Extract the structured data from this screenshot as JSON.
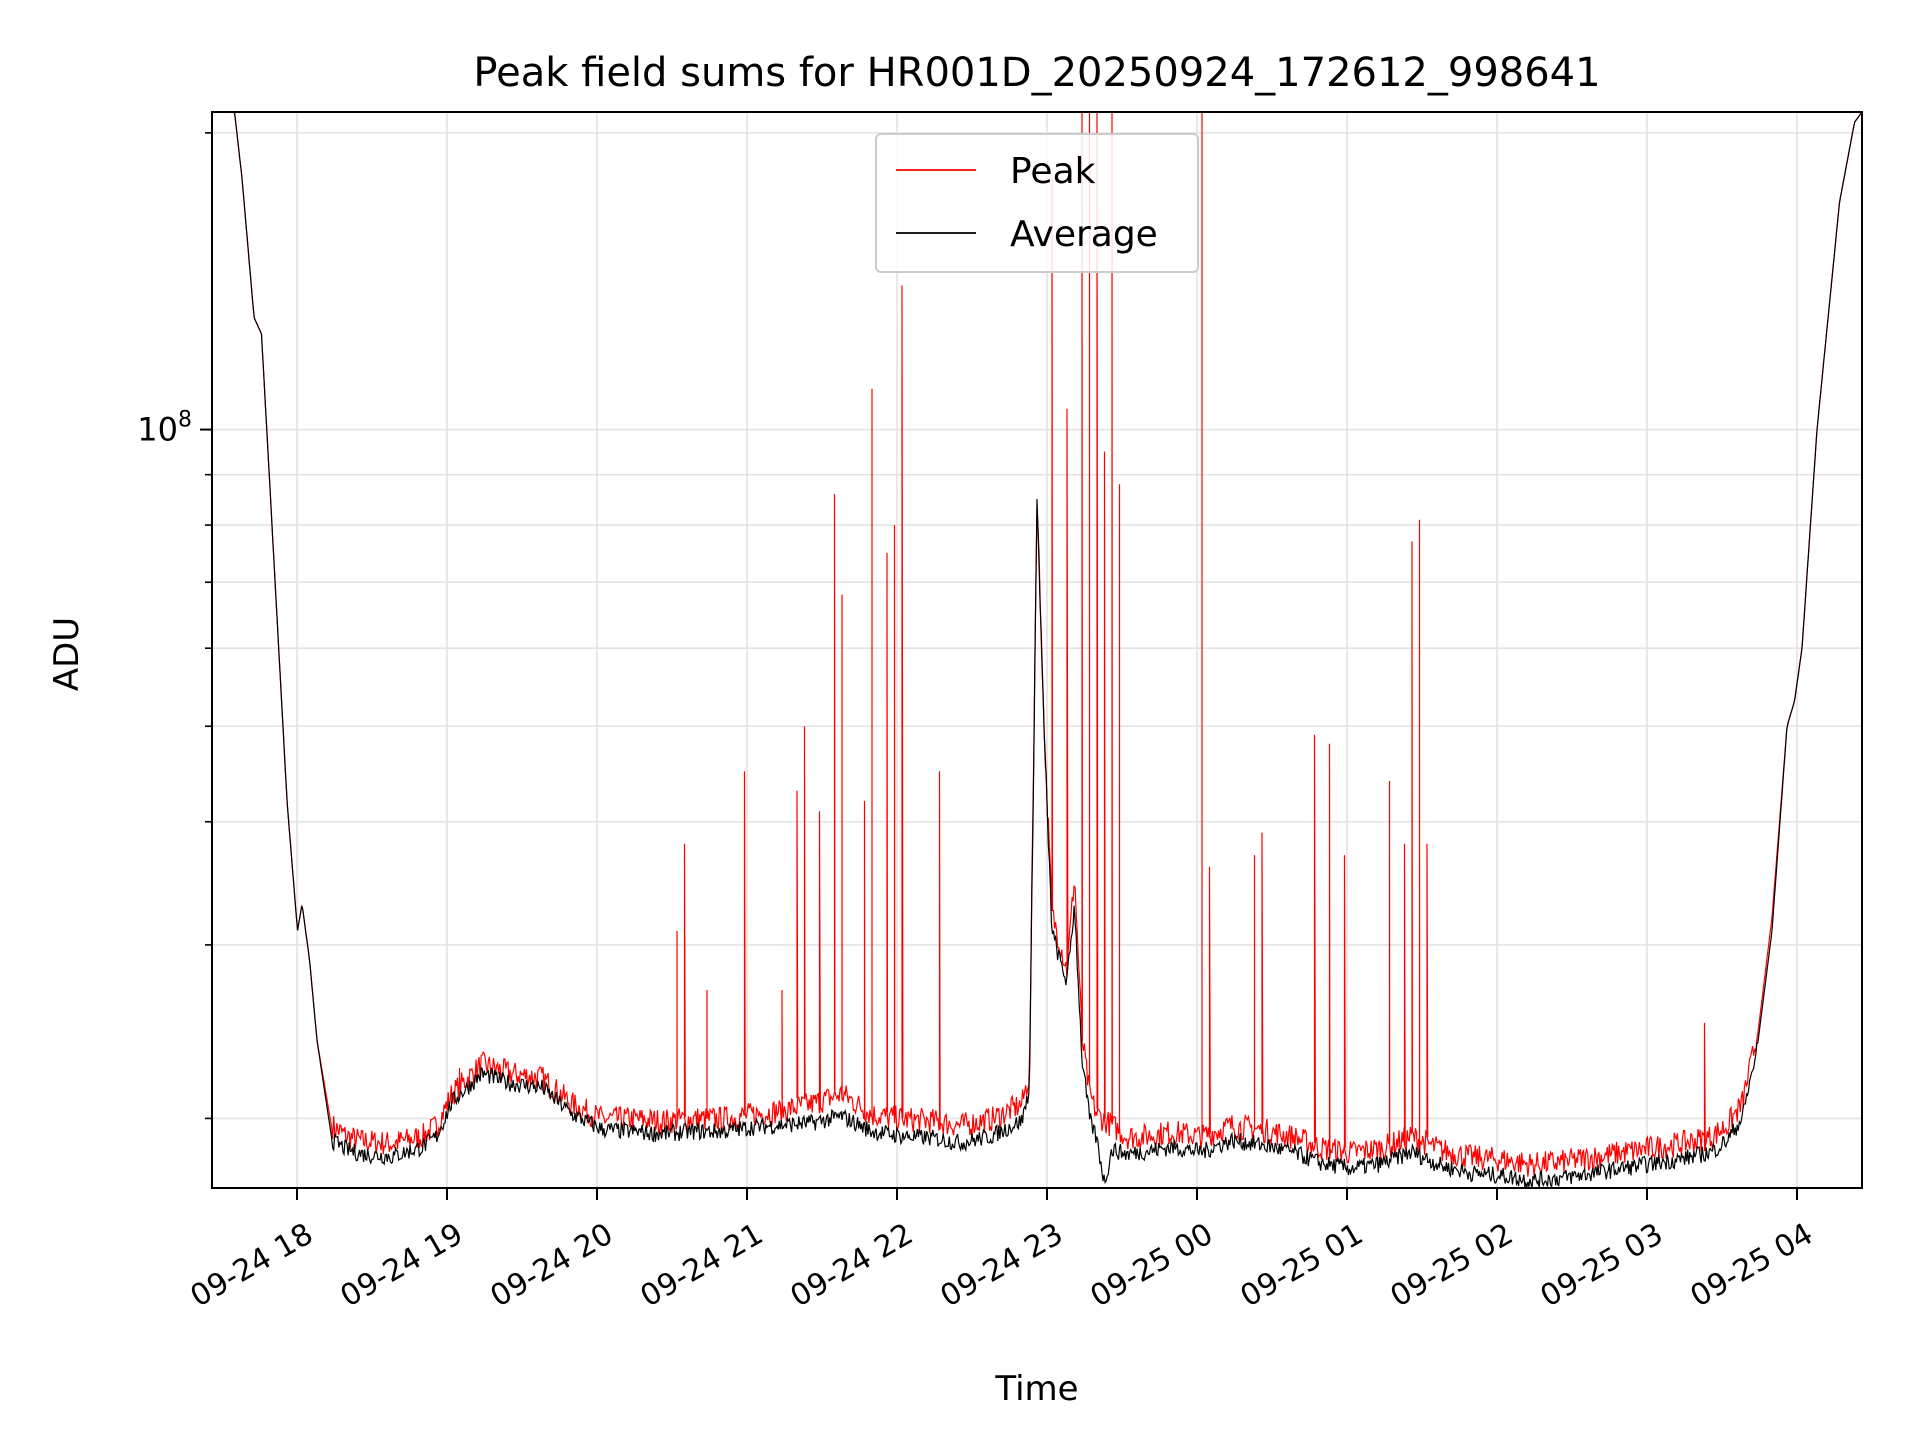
{
  "chart_data": {
    "type": "line",
    "title": "Peak field sums for HR001D_20250924_172612_998641",
    "xlabel": "Time",
    "ylabel": "ADU",
    "y_scale": "log",
    "x_range": [
      "09-24 17:26",
      "09-25 04:26"
    ],
    "ylim": [
      17000000,
      210000000
    ],
    "x_tick_labels": [
      "09-24 18",
      "09-24 19",
      "09-24 20",
      "09-24 21",
      "09-24 22",
      "09-24 23",
      "09-25 00",
      "09-25 01",
      "09-25 02",
      "09-25 03",
      "09-25 04"
    ],
    "x_tick_hours": [
      0.5667,
      1.5667,
      2.5667,
      3.5667,
      4.5667,
      5.5667,
      6.5667,
      7.5667,
      8.5667,
      9.5667,
      10.5667
    ],
    "y_tick_labels": [
      {
        "base": "10",
        "exp": "8",
        "value": 100000000
      }
    ],
    "y_minor_values": [
      20000000,
      30000000,
      40000000,
      50000000,
      60000000,
      70000000,
      80000000,
      90000000,
      200000000
    ],
    "grid": true,
    "legend_position": "top-center",
    "series": [
      {
        "name": "Peak",
        "color": "#ff0000",
        "values_unit": "ADU",
        "x_unit": "hours since 09-24 17:26",
        "baseline": [
          [
            0,
            210000000
          ],
          [
            0.15,
            210000000
          ],
          [
            0.2,
            180000000
          ],
          [
            0.28,
            130000000
          ],
          [
            0.33,
            125000000
          ],
          [
            0.4,
            80000000
          ],
          [
            0.5,
            42000000
          ],
          [
            0.57,
            31000000
          ],
          [
            0.6,
            33000000
          ],
          [
            0.65,
            29000000
          ],
          [
            0.7,
            24000000
          ],
          [
            0.8,
            19500000
          ],
          [
            0.9,
            19000000
          ],
          [
            1.0,
            18800000
          ],
          [
            1.2,
            18700000
          ],
          [
            1.4,
            19000000
          ],
          [
            1.5,
            19500000
          ],
          [
            1.6,
            21000000
          ],
          [
            1.8,
            22500000
          ],
          [
            2.0,
            22000000
          ],
          [
            2.2,
            21800000
          ],
          [
            2.4,
            20500000
          ],
          [
            2.6,
            19800000
          ],
          [
            2.8,
            19800000
          ],
          [
            3.0,
            19700000
          ],
          [
            3.2,
            19800000
          ],
          [
            3.4,
            19800000
          ],
          [
            3.6,
            20000000
          ],
          [
            3.8,
            20200000
          ],
          [
            4.0,
            20500000
          ],
          [
            4.2,
            21000000
          ],
          [
            4.4,
            20000000
          ],
          [
            4.6,
            19800000
          ],
          [
            4.8,
            19700000
          ],
          [
            5.0,
            19500000
          ],
          [
            5.2,
            19800000
          ],
          [
            5.4,
            20500000
          ],
          [
            5.45,
            22000000
          ],
          [
            5.5,
            85000000
          ],
          [
            5.55,
            48000000
          ],
          [
            5.6,
            32000000
          ],
          [
            5.65,
            30000000
          ],
          [
            5.7,
            28000000
          ],
          [
            5.75,
            35000000
          ],
          [
            5.8,
            24000000
          ],
          [
            5.85,
            21000000
          ],
          [
            5.9,
            20000000
          ],
          [
            6.0,
            19500000
          ],
          [
            6.1,
            19000000
          ],
          [
            6.2,
            19000000
          ],
          [
            6.4,
            19200000
          ],
          [
            6.6,
            19000000
          ],
          [
            6.8,
            19500000
          ],
          [
            7.0,
            19300000
          ],
          [
            7.2,
            19000000
          ],
          [
            7.4,
            18500000
          ],
          [
            7.6,
            18300000
          ],
          [
            7.8,
            18500000
          ],
          [
            8.0,
            19000000
          ],
          [
            8.2,
            18400000
          ],
          [
            8.4,
            18100000
          ],
          [
            8.6,
            18000000
          ],
          [
            8.8,
            17800000
          ],
          [
            9.0,
            17900000
          ],
          [
            9.2,
            18100000
          ],
          [
            9.4,
            18300000
          ],
          [
            9.6,
            18500000
          ],
          [
            9.8,
            18700000
          ],
          [
            10.0,
            19000000
          ],
          [
            10.1,
            19500000
          ],
          [
            10.2,
            20500000
          ],
          [
            10.3,
            24000000
          ],
          [
            10.4,
            32000000
          ],
          [
            10.5,
            50000000
          ],
          [
            10.55,
            53000000
          ],
          [
            10.6,
            60000000
          ],
          [
            10.7,
            100000000
          ],
          [
            10.85,
            170000000
          ],
          [
            10.95,
            205000000
          ],
          [
            11.0,
            210000000
          ]
        ],
        "spikes": [
          [
            1.65,
            22500000
          ],
          [
            3.1,
            31000000
          ],
          [
            3.15,
            38000000
          ],
          [
            3.3,
            27000000
          ],
          [
            3.55,
            45000000
          ],
          [
            3.8,
            27000000
          ],
          [
            3.9,
            43000000
          ],
          [
            3.95,
            50000000
          ],
          [
            4.05,
            41000000
          ],
          [
            4.15,
            86000000
          ],
          [
            4.2,
            68000000
          ],
          [
            4.35,
            42000000
          ],
          [
            4.4,
            110000000
          ],
          [
            4.5,
            75000000
          ],
          [
            4.55,
            80000000
          ],
          [
            4.6,
            140000000
          ],
          [
            4.85,
            45000000
          ],
          [
            5.6,
            180000000
          ],
          [
            5.7,
            105000000
          ],
          [
            5.8,
            210000000
          ],
          [
            5.85,
            210000000
          ],
          [
            5.9,
            210000000
          ],
          [
            5.95,
            95000000
          ],
          [
            6.0,
            210000000
          ],
          [
            6.05,
            88000000
          ],
          [
            6.6,
            210000000
          ],
          [
            6.65,
            36000000
          ],
          [
            6.95,
            37000000
          ],
          [
            7.0,
            39000000
          ],
          [
            7.35,
            49000000
          ],
          [
            7.45,
            48000000
          ],
          [
            7.55,
            37000000
          ],
          [
            7.85,
            44000000
          ],
          [
            7.95,
            38000000
          ],
          [
            8.0,
            77000000
          ],
          [
            8.05,
            81000000
          ],
          [
            8.1,
            38000000
          ],
          [
            9.95,
            25000000
          ]
        ]
      },
      {
        "name": "Average",
        "color": "#000000",
        "values_unit": "ADU",
        "x_unit": "hours since 09-24 17:26",
        "points": [
          [
            0,
            210000000
          ],
          [
            0.15,
            210000000
          ],
          [
            0.2,
            180000000
          ],
          [
            0.28,
            130000000
          ],
          [
            0.33,
            125000000
          ],
          [
            0.4,
            80000000
          ],
          [
            0.5,
            42000000
          ],
          [
            0.57,
            31000000
          ],
          [
            0.6,
            33000000
          ],
          [
            0.65,
            29000000
          ],
          [
            0.7,
            24000000
          ],
          [
            0.8,
            19000000
          ],
          [
            0.9,
            18600000
          ],
          [
            1.0,
            18400000
          ],
          [
            1.2,
            18300000
          ],
          [
            1.4,
            18700000
          ],
          [
            1.5,
            19200000
          ],
          [
            1.6,
            20800000
          ],
          [
            1.8,
            22200000
          ],
          [
            2.0,
            21700000
          ],
          [
            2.2,
            21500000
          ],
          [
            2.4,
            20200000
          ],
          [
            2.6,
            19500000
          ],
          [
            2.8,
            19400000
          ],
          [
            3.0,
            19300000
          ],
          [
            3.2,
            19400000
          ],
          [
            3.4,
            19400000
          ],
          [
            3.6,
            19600000
          ],
          [
            3.8,
            19700000
          ],
          [
            4.0,
            19800000
          ],
          [
            4.2,
            20100000
          ],
          [
            4.4,
            19400000
          ],
          [
            4.6,
            19200000
          ],
          [
            4.8,
            19100000
          ],
          [
            5.0,
            18900000
          ],
          [
            5.2,
            19200000
          ],
          [
            5.4,
            19900000
          ],
          [
            5.45,
            21500000
          ],
          [
            5.5,
            85000000
          ],
          [
            5.55,
            48000000
          ],
          [
            5.6,
            31000000
          ],
          [
            5.65,
            29000000
          ],
          [
            5.7,
            27500000
          ],
          [
            5.75,
            33000000
          ],
          [
            5.8,
            23000000
          ],
          [
            5.85,
            20000000
          ],
          [
            5.9,
            19000000
          ],
          [
            5.95,
            17200000
          ],
          [
            6.0,
            18600000
          ],
          [
            6.1,
            18400000
          ],
          [
            6.2,
            18500000
          ],
          [
            6.4,
            18700000
          ],
          [
            6.6,
            18500000
          ],
          [
            6.8,
            19000000
          ],
          [
            7.0,
            18800000
          ],
          [
            7.2,
            18500000
          ],
          [
            7.4,
            18000000
          ],
          [
            7.6,
            17800000
          ],
          [
            7.8,
            18000000
          ],
          [
            8.0,
            18500000
          ],
          [
            8.2,
            17900000
          ],
          [
            8.4,
            17600000
          ],
          [
            8.6,
            17500000
          ],
          [
            8.8,
            17300000
          ],
          [
            9.0,
            17400000
          ],
          [
            9.2,
            17600000
          ],
          [
            9.4,
            17800000
          ],
          [
            9.6,
            18000000
          ],
          [
            9.8,
            18200000
          ],
          [
            10.0,
            18500000
          ],
          [
            10.1,
            19000000
          ],
          [
            10.2,
            20000000
          ],
          [
            10.3,
            23500000
          ],
          [
            10.4,
            31000000
          ],
          [
            10.5,
            50000000
          ],
          [
            10.55,
            53000000
          ],
          [
            10.6,
            60000000
          ],
          [
            10.7,
            100000000
          ],
          [
            10.85,
            170000000
          ],
          [
            10.95,
            205000000
          ],
          [
            11.0,
            210000000
          ]
        ]
      }
    ]
  }
}
